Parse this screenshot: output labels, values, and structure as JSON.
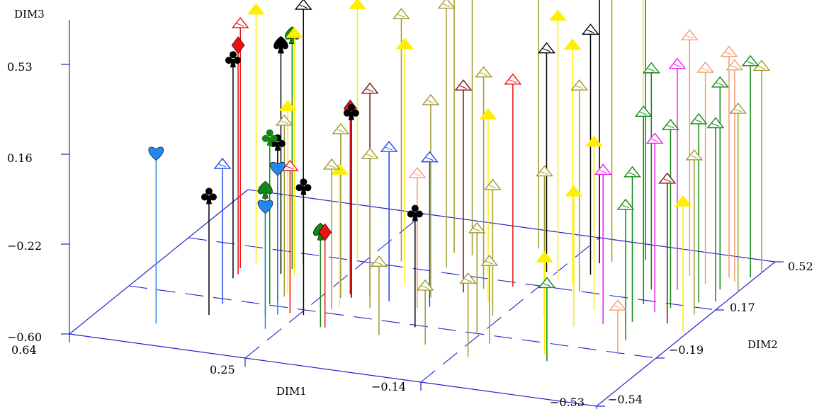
{
  "chart_data": {
    "type": "scatter",
    "projection": "3d",
    "background": "#ffffff",
    "axis_color": "#2222cc",
    "axes": {
      "dim1": {
        "label": "DIM1",
        "ticks": [
          "0.64",
          "0.25",
          "−0.14",
          "−0.53"
        ],
        "range": [
          0.64,
          -0.53
        ]
      },
      "dim2": {
        "label": "DIM2",
        "ticks": [
          "−0.54",
          "−0.19",
          "0.17",
          "0.52"
        ],
        "range": [
          -0.54,
          0.52
        ]
      },
      "dim3": {
        "label": "DIM3",
        "ticks": [
          "−0.60",
          "−0.22",
          "0.16",
          "0.53"
        ],
        "range": [
          -0.6,
          0.53
        ]
      }
    },
    "palette": {
      "black": "#000000",
      "red": "#ee1111",
      "darkred": "#7a1010",
      "green": "#118811",
      "olive": "#a09a2a",
      "yellow": "#ffee00",
      "blue": "#2244ee",
      "lightblue": "#2288ee",
      "salmon": "#f59a6e",
      "magenta": "#ee22ee"
    },
    "points": [
      {
        "d1": 0.5,
        "d2": -0.4,
        "d3": 0.12,
        "symbol": "heart",
        "color": "lightblue"
      },
      {
        "d1": 0.46,
        "d2": -0.05,
        "d3": 0.32,
        "symbol": "club",
        "color": "black"
      },
      {
        "d1": 0.46,
        "d2": -0.02,
        "d3": 0.36,
        "symbol": "diamond",
        "color": "red"
      },
      {
        "d1": 0.47,
        "d2": 0.02,
        "d3": 0.42,
        "symbol": "arrow",
        "color": "red"
      },
      {
        "d1": 0.45,
        "d2": 0.06,
        "d3": 0.46,
        "symbol": "arrow",
        "color": "yellow"
      },
      {
        "d1": 0.42,
        "d2": -0.3,
        "d3": -0.1,
        "symbol": "club",
        "color": "black"
      },
      {
        "d1": 0.42,
        "d2": -0.22,
        "d3": -0.02,
        "symbol": "arrow",
        "color": "blue"
      },
      {
        "d1": 0.38,
        "d2": 0.02,
        "d3": 0.36,
        "symbol": "spade",
        "color": "black"
      },
      {
        "d1": 0.37,
        "d2": 0.06,
        "d3": 0.38,
        "symbol": "spade",
        "color": "green"
      },
      {
        "d1": 0.36,
        "d2": 0.1,
        "d3": 0.48,
        "symbol": "arrow",
        "color": "black"
      },
      {
        "d1": 0.35,
        "d2": 0.02,
        "d3": 0.41,
        "symbol": "arrow",
        "color": "yellow"
      },
      {
        "d1": 0.33,
        "d2": -0.18,
        "d3": 0.1,
        "symbol": "club",
        "color": "green"
      },
      {
        "d1": 0.32,
        "d2": -0.16,
        "d3": 0.07,
        "symbol": "club",
        "color": "black"
      },
      {
        "d1": 0.32,
        "d2": -0.12,
        "d3": 0.13,
        "symbol": "arrow",
        "color": "olive"
      },
      {
        "d1": 0.32,
        "d2": -0.1,
        "d3": 0.18,
        "symbol": "arrow",
        "color": "yellow"
      },
      {
        "d1": 0.31,
        "d2": -0.26,
        "d3": -0.07,
        "symbol": "spade",
        "color": "green"
      },
      {
        "d1": 0.28,
        "d2": -0.34,
        "d3": -0.08,
        "symbol": "heart",
        "color": "lightblue"
      },
      {
        "d1": 0.29,
        "d2": -0.24,
        "d3": 0.02,
        "symbol": "heart",
        "color": "lightblue"
      },
      {
        "d1": 0.27,
        "d2": -0.22,
        "d3": 0.01,
        "symbol": "arrow",
        "color": "red"
      },
      {
        "d1": 0.27,
        "d2": 0.18,
        "d3": 0.46,
        "symbol": "arrow",
        "color": "yellow"
      },
      {
        "d1": 0.24,
        "d2": -0.22,
        "d3": -0.06,
        "symbol": "club",
        "color": "black"
      },
      {
        "d1": 0.21,
        "d2": -0.08,
        "d3": 0.1,
        "symbol": "arrow",
        "color": "olive"
      },
      {
        "d1": 0.2,
        "d2": -0.16,
        "d3": 0.0,
        "symbol": "arrow",
        "color": "olive"
      },
      {
        "d1": 0.2,
        "d2": -0.05,
        "d3": 0.18,
        "symbol": "diamond",
        "color": "red"
      },
      {
        "d1": 0.19,
        "d2": -0.07,
        "d3": 0.18,
        "symbol": "club",
        "color": "black"
      },
      {
        "d1": 0.19,
        "d2": -0.14,
        "d3": -0.03,
        "symbol": "arrow",
        "color": "yellow"
      },
      {
        "d1": 0.18,
        "d2": -0.28,
        "d3": -0.2,
        "symbol": "spade",
        "color": "green"
      },
      {
        "d1": 0.17,
        "d2": -0.28,
        "d3": -0.2,
        "symbol": "diamond",
        "color": "red"
      },
      {
        "d1": 0.18,
        "d2": 0.2,
        "d3": 0.43,
        "symbol": "arrow",
        "color": "olive"
      },
      {
        "d1": 0.16,
        "d2": -0.04,
        "d3": 0.26,
        "symbol": "arrow",
        "color": "darkred"
      },
      {
        "d1": 0.13,
        "d2": -0.12,
        "d3": 0.04,
        "symbol": "arrow",
        "color": "olive"
      },
      {
        "d1": 0.12,
        "d2": 0.06,
        "d3": 0.4,
        "symbol": "arrow",
        "color": "yellow"
      },
      {
        "d1": 0.11,
        "d2": -0.06,
        "d3": 0.04,
        "symbol": "arrow",
        "color": "blue"
      },
      {
        "d1": 0.1,
        "d2": 0.3,
        "d3": 0.6,
        "symbol": "arrow",
        "color": "olive"
      },
      {
        "d1": 0.08,
        "d2": 0.2,
        "d3": 0.5,
        "symbol": "arrow",
        "color": "olive"
      },
      {
        "d1": 0.06,
        "d2": 0.3,
        "d3": 0.66,
        "symbol": "arrow",
        "color": "olive"
      },
      {
        "d1": 0.05,
        "d2": -0.28,
        "d3": -0.3,
        "symbol": "arrow",
        "color": "olive"
      },
      {
        "d1": 0.04,
        "d2": -0.08,
        "d3": -0.04,
        "symbol": "arrow",
        "color": "salmon"
      },
      {
        "d1": 0.04,
        "d2": 0.0,
        "d3": 0.22,
        "symbol": "arrow",
        "color": "olive"
      },
      {
        "d1": 0.02,
        "d2": -0.06,
        "d3": 0.02,
        "symbol": "arrow",
        "color": "blue"
      },
      {
        "d1": 0.0,
        "d2": -0.2,
        "d3": -0.12,
        "symbol": "club",
        "color": "black"
      },
      {
        "d1": -0.01,
        "d2": 0.06,
        "d3": 0.26,
        "symbol": "arrow",
        "color": "darkred"
      },
      {
        "d1": -0.05,
        "d2": 0.4,
        "d3": 0.75,
        "symbol": "arrow",
        "color": "olive"
      },
      {
        "d1": -0.04,
        "d2": 0.1,
        "d3": 0.3,
        "symbol": "arrow",
        "color": "olive"
      },
      {
        "d1": -0.08,
        "d2": 0.02,
        "d3": 0.18,
        "symbol": "arrow",
        "color": "yellow"
      },
      {
        "d1": -0.09,
        "d2": 0.14,
        "d3": 0.26,
        "symbol": "arrow",
        "color": "red"
      },
      {
        "d1": -0.06,
        "d2": -0.3,
        "d3": -0.36,
        "symbol": "arrow",
        "color": "olive"
      },
      {
        "d1": -0.12,
        "d2": 0.26,
        "d3": 0.33,
        "symbol": "arrow",
        "color": "black"
      },
      {
        "d1": -0.12,
        "d2": -0.06,
        "d3": -0.06,
        "symbol": "arrow",
        "color": "olive"
      },
      {
        "d1": -0.13,
        "d2": -0.18,
        "d3": -0.17,
        "symbol": "arrow",
        "color": "olive"
      },
      {
        "d1": -0.16,
        "d2": 0.22,
        "d3": 0.5,
        "symbol": "arrow",
        "color": "yellow"
      },
      {
        "d1": -0.17,
        "d2": -0.34,
        "d3": -0.28,
        "symbol": "arrow",
        "color": "olive"
      },
      {
        "d1": -0.18,
        "d2": -0.24,
        "d3": -0.26,
        "symbol": "arrow",
        "color": "olive"
      },
      {
        "d1": -0.2,
        "d2": 0.36,
        "d3": 0.68,
        "symbol": "arrow",
        "color": "black"
      },
      {
        "d1": -0.22,
        "d2": 0.38,
        "d3": 0.62,
        "symbol": "arrow",
        "color": "olive"
      },
      {
        "d1": -0.2,
        "d2": 0.2,
        "d3": 0.4,
        "symbol": "arrow",
        "color": "yellow"
      },
      {
        "d1": -0.21,
        "d2": 0.28,
        "d3": 0.42,
        "symbol": "arrow",
        "color": "black"
      },
      {
        "d1": -0.23,
        "d2": 0.16,
        "d3": 0.26,
        "symbol": "arrow",
        "color": "olive"
      },
      {
        "d1": -0.22,
        "d2": -0.02,
        "d3": 0.0,
        "symbol": "arrow",
        "color": "olive"
      },
      {
        "d1": -0.26,
        "d2": 0.46,
        "d3": 0.78,
        "symbol": "arrow",
        "color": "yellow"
      },
      {
        "d1": -0.28,
        "d2": 0.42,
        "d3": 0.72,
        "symbol": "arrow",
        "color": "green"
      },
      {
        "d1": -0.3,
        "d2": 0.06,
        "d3": 0.1,
        "symbol": "arrow",
        "color": "yellow"
      },
      {
        "d1": -0.3,
        "d2": -0.06,
        "d3": -0.04,
        "symbol": "arrow",
        "color": "yellow"
      },
      {
        "d1": -0.31,
        "d2": -0.26,
        "d3": -0.2,
        "symbol": "arrow",
        "color": "yellow"
      },
      {
        "d1": -0.33,
        "d2": -0.3,
        "d3": -0.28,
        "symbol": "arrow",
        "color": "green"
      },
      {
        "d1": -0.35,
        "d2": -0.02,
        "d3": 0.04,
        "symbol": "arrow",
        "color": "magenta"
      },
      {
        "d1": -0.36,
        "d2": 0.24,
        "d3": 0.32,
        "symbol": "arrow",
        "color": "green"
      },
      {
        "d1": -0.38,
        "d2": 0.14,
        "d3": 0.2,
        "symbol": "arrow",
        "color": "green"
      },
      {
        "d1": -0.4,
        "d2": 0.36,
        "d3": 0.4,
        "symbol": "arrow",
        "color": "salmon"
      },
      {
        "d1": -0.4,
        "d2": 0.02,
        "d3": 0.02,
        "symbol": "arrow",
        "color": "green"
      },
      {
        "d1": -0.41,
        "d2": 0.26,
        "d3": 0.34,
        "symbol": "arrow",
        "color": "magenta"
      },
      {
        "d1": -0.42,
        "d2": 0.1,
        "d3": 0.12,
        "symbol": "arrow",
        "color": "magenta"
      },
      {
        "d1": -0.43,
        "d2": -0.1,
        "d3": -0.04,
        "symbol": "arrow",
        "color": "green"
      },
      {
        "d1": -0.44,
        "d2": 0.14,
        "d3": 0.16,
        "symbol": "arrow",
        "color": "green"
      },
      {
        "d1": -0.45,
        "d2": -0.2,
        "d3": -0.4,
        "symbol": "arrow",
        "color": "salmon"
      },
      {
        "d1": -0.45,
        "d2": 0.32,
        "d3": 0.3,
        "symbol": "arrow",
        "color": "salmon"
      },
      {
        "d1": -0.47,
        "d2": 0.04,
        "d3": 0.0,
        "symbol": "arrow",
        "color": "darkred"
      },
      {
        "d1": -0.48,
        "d2": 0.38,
        "d3": 0.34,
        "symbol": "arrow",
        "color": "salmon"
      },
      {
        "d1": -0.48,
        "d2": 0.2,
        "d3": 0.16,
        "symbol": "arrow",
        "color": "green"
      },
      {
        "d1": -0.49,
        "d2": 0.3,
        "d3": 0.26,
        "symbol": "arrow",
        "color": "green"
      },
      {
        "d1": -0.5,
        "d2": 0.36,
        "d3": 0.3,
        "symbol": "arrow",
        "color": "salmon"
      },
      {
        "d1": -0.5,
        "d2": 0.12,
        "d3": 0.06,
        "symbol": "arrow",
        "color": "olive"
      },
      {
        "d1": -0.51,
        "d2": 0.22,
        "d3": 0.14,
        "symbol": "arrow",
        "color": "green"
      },
      {
        "d1": -0.52,
        "d2": 0.0,
        "d3": -0.06,
        "symbol": "arrow",
        "color": "yellow"
      },
      {
        "d1": -0.52,
        "d2": 0.4,
        "d3": 0.3,
        "symbol": "arrow",
        "color": "green"
      },
      {
        "d1": -0.53,
        "d2": 0.3,
        "d3": 0.16,
        "symbol": "arrow",
        "color": "olive"
      },
      {
        "d1": -0.53,
        "d2": 0.44,
        "d3": 0.26,
        "symbol": "arrow",
        "color": "olive"
      }
    ]
  }
}
